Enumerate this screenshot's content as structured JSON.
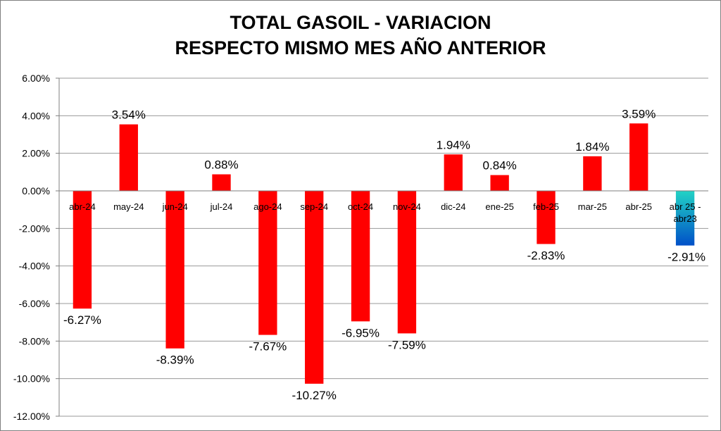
{
  "chart_data": {
    "type": "bar",
    "title_lines": [
      "TOTAL GASOIL - VARIACION",
      "RESPECTO MISMO MES AÑO ANTERIOR"
    ],
    "xlabel": "",
    "ylabel": "",
    "ylim": [
      -12,
      6
    ],
    "y_tick_step": 2,
    "y_tick_labels": [
      "6.00%",
      "4.00%",
      "2.00%",
      "0.00%",
      "-2.00%",
      "-4.00%",
      "-6.00%",
      "-8.00%",
      "-10.00%",
      "-12.00%"
    ],
    "grid": true,
    "legend": "none",
    "categories": [
      "abr-24",
      "may-24",
      "jun-24",
      "jul-24",
      "ago-24",
      "sep-24",
      "oct-24",
      "nov-24",
      "dic-24",
      "ene-25",
      "feb-25",
      "mar-25",
      "abr-25",
      "abr 25 - abr23"
    ],
    "values": [
      -6.27,
      3.54,
      -8.39,
      0.88,
      -7.67,
      -10.27,
      -6.95,
      -7.59,
      1.94,
      0.84,
      -2.83,
      1.84,
      3.59,
      -2.91
    ],
    "data_labels": [
      "-6.27%",
      "3.54%",
      "-8.39%",
      "0.88%",
      "-7.67%",
      "-10.27%",
      "-6.95%",
      "-7.59%",
      "1.94%",
      "0.84%",
      "-2.83%",
      "1.84%",
      "3.59%",
      "-2.91%"
    ],
    "colors": {
      "bar": "#ff0000",
      "highlight_top": "#22d3c5",
      "highlight_bottom": "#0050c8",
      "grid": "#9a9a9a",
      "axis": "#7f7f7f"
    }
  }
}
